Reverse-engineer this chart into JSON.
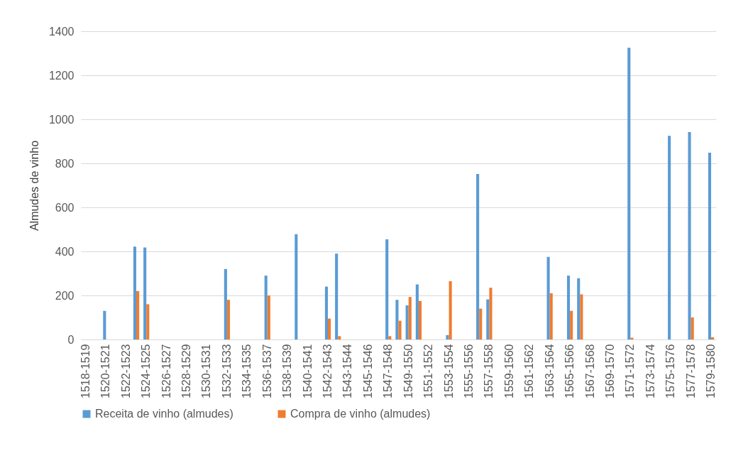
{
  "chart_data": {
    "type": "bar",
    "ylabel": "Almudes de vinho",
    "categories": [
      "1518-1519",
      null,
      "1520-1521",
      null,
      "1522-1523",
      null,
      "1524-1525",
      null,
      "1526-1527",
      null,
      "1528-1529",
      null,
      "1530-1531",
      null,
      "1532-1533",
      null,
      "1534-1535",
      null,
      "1536-1537",
      null,
      "1538-1539",
      null,
      "1540-1541",
      null,
      "1542-1543",
      null,
      "1543-1544",
      null,
      "1545-1546",
      null,
      "1547-1548",
      null,
      "1549-1550",
      null,
      "1551-1552",
      null,
      "1553-1554",
      null,
      "1555-1556",
      null,
      "1557-1558",
      null,
      "1559-1560",
      null,
      "1561-1562",
      null,
      "1563-1564",
      null,
      "1565-1566",
      null,
      "1567-1568",
      null,
      "1569-1570",
      null,
      "1571-1572",
      null,
      "1573-1574",
      null,
      "1575-1576",
      null,
      "1577-1578",
      null,
      "1579-1580"
    ],
    "series": [
      {
        "name": "Receita de vinho (almudes)",
        "color": "#5b9bd5",
        "values": [
          null,
          null,
          130,
          null,
          null,
          422,
          418,
          null,
          null,
          null,
          null,
          null,
          null,
          null,
          320,
          null,
          null,
          null,
          290,
          null,
          null,
          478,
          null,
          null,
          240,
          390,
          null,
          null,
          null,
          null,
          455,
          180,
          155,
          250,
          null,
          null,
          20,
          null,
          null,
          752,
          182,
          null,
          null,
          null,
          null,
          null,
          375,
          null,
          290,
          278,
          null,
          null,
          null,
          null,
          1325,
          null,
          null,
          null,
          925,
          null,
          942,
          null,
          848
        ]
      },
      {
        "name": "Compra de vinho (almudes)",
        "color": "#ed7d31",
        "values": [
          null,
          null,
          null,
          null,
          null,
          220,
          160,
          null,
          null,
          null,
          null,
          null,
          null,
          null,
          180,
          null,
          null,
          null,
          200,
          null,
          null,
          null,
          null,
          null,
          95,
          15,
          null,
          null,
          null,
          null,
          15,
          85,
          193,
          175,
          null,
          null,
          265,
          null,
          null,
          140,
          235,
          null,
          null,
          null,
          null,
          null,
          210,
          null,
          130,
          205,
          null,
          null,
          null,
          null,
          8,
          null,
          null,
          null,
          null,
          null,
          100,
          null,
          10
        ]
      }
    ],
    "ylim": [
      0,
      1400
    ],
    "yticks": [
      0,
      200,
      400,
      600,
      800,
      1000,
      1200,
      1400
    ],
    "grid": "y",
    "legend": "bottom"
  }
}
